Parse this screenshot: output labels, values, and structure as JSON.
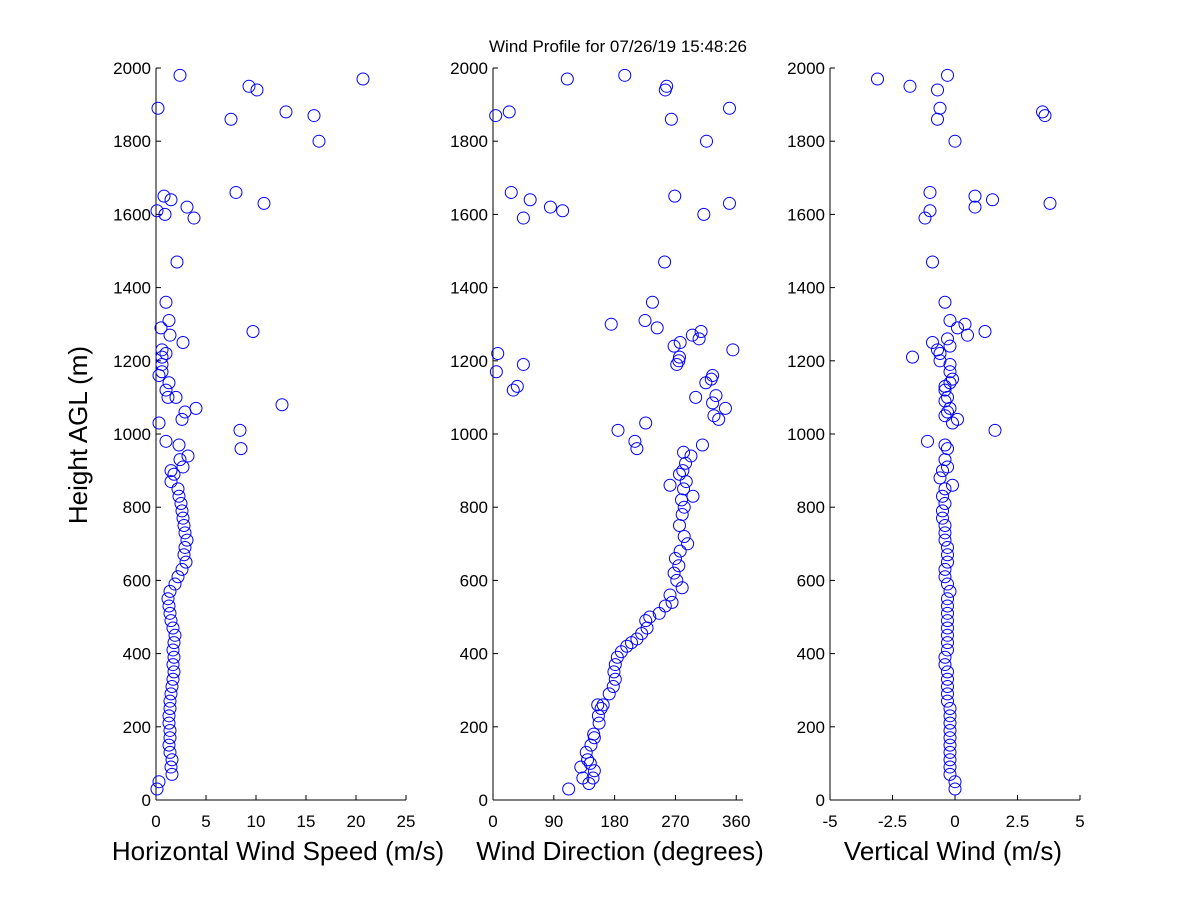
{
  "figure": {
    "title": "Wind Profile for  07/26/19 15:48:26",
    "ylabel": "Height AGL (m)"
  },
  "colors": {
    "marker": "#0000ff",
    "axes": "#000000",
    "background": "#ffffff"
  },
  "chart_data": [
    {
      "type": "scatter",
      "xlabel": "Horizontal Wind Speed (m/s)",
      "ylabel": "Height AGL (m)",
      "xlim": [
        0,
        25
      ],
      "ylim": [
        0,
        2000
      ],
      "xticks": [
        0,
        5,
        10,
        15,
        20,
        25
      ],
      "xtick_labels": [
        "0",
        "5",
        "10",
        "15",
        "20",
        "25"
      ],
      "yticks": [
        0,
        200,
        400,
        600,
        800,
        1000,
        1200,
        1400,
        1600,
        1800,
        2000
      ],
      "ytick_labels": [
        "0",
        "200",
        "400",
        "600",
        "800",
        "1000",
        "1200",
        "1400",
        "1600",
        "1800",
        "2000"
      ],
      "marker": "circle",
      "grid": false,
      "points": [
        [
          0.1,
          30
        ],
        [
          0.3,
          50
        ],
        [
          1.6,
          70
        ],
        [
          1.5,
          90
        ],
        [
          1.6,
          110
        ],
        [
          1.4,
          130
        ],
        [
          1.3,
          150
        ],
        [
          1.4,
          170
        ],
        [
          1.4,
          190
        ],
        [
          1.3,
          210
        ],
        [
          1.3,
          230
        ],
        [
          1.4,
          250
        ],
        [
          1.4,
          270
        ],
        [
          1.5,
          290
        ],
        [
          1.6,
          310
        ],
        [
          1.7,
          330
        ],
        [
          1.8,
          350
        ],
        [
          1.7,
          370
        ],
        [
          1.8,
          390
        ],
        [
          1.7,
          410
        ],
        [
          1.8,
          430
        ],
        [
          1.9,
          450
        ],
        [
          1.7,
          470
        ],
        [
          1.5,
          490
        ],
        [
          1.4,
          510
        ],
        [
          1.3,
          530
        ],
        [
          1.2,
          550
        ],
        [
          1.4,
          570
        ],
        [
          1.9,
          590
        ],
        [
          2.2,
          610
        ],
        [
          2.6,
          630
        ],
        [
          3.0,
          650
        ],
        [
          2.8,
          670
        ],
        [
          2.9,
          690
        ],
        [
          3.1,
          710
        ],
        [
          2.9,
          730
        ],
        [
          2.8,
          750
        ],
        [
          2.7,
          770
        ],
        [
          2.6,
          790
        ],
        [
          2.5,
          810
        ],
        [
          2.3,
          830
        ],
        [
          2.2,
          850
        ],
        [
          1.5,
          870
        ],
        [
          1.8,
          890
        ],
        [
          1.5,
          900
        ],
        [
          2.7,
          910
        ],
        [
          2.4,
          930
        ],
        [
          3.2,
          940
        ],
        [
          2.3,
          970
        ],
        [
          1.0,
          980
        ],
        [
          8.5,
          960
        ],
        [
          8.4,
          1010
        ],
        [
          0.3,
          1030
        ],
        [
          2.6,
          1040
        ],
        [
          2.9,
          1060
        ],
        [
          4.0,
          1070
        ],
        [
          12.6,
          1080
        ],
        [
          2.0,
          1100
        ],
        [
          1.0,
          1120
        ],
        [
          1.3,
          1140
        ],
        [
          0.3,
          1160
        ],
        [
          0.6,
          1170
        ],
        [
          0.6,
          1190
        ],
        [
          0.6,
          1210
        ],
        [
          1.0,
          1220
        ],
        [
          0.6,
          1230
        ],
        [
          2.7,
          1250
        ],
        [
          1.4,
          1270
        ],
        [
          9.7,
          1280
        ],
        [
          0.5,
          1290
        ],
        [
          1.3,
          1310
        ],
        [
          1.0,
          1360
        ],
        [
          2.1,
          1470
        ],
        [
          3.8,
          1590
        ],
        [
          0.1,
          1610
        ],
        [
          3.1,
          1620
        ],
        [
          1.5,
          1640
        ],
        [
          0.8,
          1650
        ],
        [
          8.0,
          1660
        ],
        [
          10.8,
          1630
        ],
        [
          16.3,
          1800
        ],
        [
          7.5,
          1860
        ],
        [
          15.8,
          1870
        ],
        [
          13.0,
          1880
        ],
        [
          0.2,
          1890
        ],
        [
          10.1,
          1940
        ],
        [
          9.3,
          1950
        ],
        [
          20.7,
          1970
        ],
        [
          2.4,
          1980
        ],
        [
          0.9,
          1600
        ],
        [
          1.2,
          1100
        ]
      ]
    },
    {
      "type": "scatter",
      "xlabel": "Wind Direction (degrees)",
      "xlim": [
        0,
        370
      ],
      "ylim": [
        0,
        2000
      ],
      "xticks": [
        0,
        90,
        180,
        270,
        360
      ],
      "xtick_labels": [
        "0",
        "90",
        "180",
        "270",
        "360"
      ],
      "yticks": [
        0,
        200,
        400,
        600,
        800,
        1000,
        1200,
        1400,
        1600,
        1800,
        2000
      ],
      "ytick_labels": [
        "0",
        "200",
        "400",
        "600",
        "800",
        "1000",
        "1200",
        "1400",
        "1600",
        "1800",
        "2000"
      ],
      "marker": "circle",
      "grid": false,
      "points": [
        [
          112,
          30
        ],
        [
          142,
          45
        ],
        [
          148,
          60
        ],
        [
          133,
          60
        ],
        [
          150,
          80
        ],
        [
          130,
          90
        ],
        [
          144,
          100
        ],
        [
          140,
          110
        ],
        [
          138,
          130
        ],
        [
          145,
          150
        ],
        [
          150,
          170
        ],
        [
          149,
          180
        ],
        [
          157,
          210
        ],
        [
          156,
          230
        ],
        [
          160,
          250
        ],
        [
          155,
          260
        ],
        [
          163,
          260
        ],
        [
          172,
          290
        ],
        [
          178,
          310
        ],
        [
          181,
          330
        ],
        [
          179,
          350
        ],
        [
          181,
          370
        ],
        [
          184,
          390
        ],
        [
          190,
          405
        ],
        [
          198,
          420
        ],
        [
          205,
          430
        ],
        [
          213,
          440
        ],
        [
          220,
          455
        ],
        [
          228,
          470
        ],
        [
          226,
          490
        ],
        [
          232,
          500
        ],
        [
          246,
          510
        ],
        [
          255,
          530
        ],
        [
          265,
          540
        ],
        [
          262,
          560
        ],
        [
          280,
          580
        ],
        [
          272,
          600
        ],
        [
          268,
          620
        ],
        [
          275,
          640
        ],
        [
          270,
          660
        ],
        [
          277,
          680
        ],
        [
          288,
          700
        ],
        [
          283,
          720
        ],
        [
          276,
          750
        ],
        [
          280,
          780
        ],
        [
          283,
          800
        ],
        [
          279,
          820
        ],
        [
          296,
          830
        ],
        [
          282,
          850
        ],
        [
          286,
          870
        ],
        [
          262,
          860
        ],
        [
          276,
          890
        ],
        [
          281,
          900
        ],
        [
          285,
          920
        ],
        [
          293,
          940
        ],
        [
          282,
          950
        ],
        [
          310,
          970
        ],
        [
          210,
          980
        ],
        [
          213,
          960
        ],
        [
          185,
          1010
        ],
        [
          226,
          1030
        ],
        [
          334,
          1040
        ],
        [
          327,
          1050
        ],
        [
          344,
          1070
        ],
        [
          325,
          1085
        ],
        [
          330,
          1105
        ],
        [
          300,
          1100
        ],
        [
          315,
          1140
        ],
        [
          323,
          1150
        ],
        [
          325,
          1160
        ],
        [
          272,
          1190
        ],
        [
          275,
          1200
        ],
        [
          276,
          1210
        ],
        [
          45,
          1190
        ],
        [
          30,
          1120
        ],
        [
          36,
          1130
        ],
        [
          5,
          1170
        ],
        [
          7,
          1220
        ],
        [
          355,
          1230
        ],
        [
          305,
          1260
        ],
        [
          277,
          1250
        ],
        [
          268,
          1240
        ],
        [
          308,
          1280
        ],
        [
          295,
          1270
        ],
        [
          243,
          1290
        ],
        [
          225,
          1310
        ],
        [
          175,
          1300
        ],
        [
          236,
          1360
        ],
        [
          254,
          1470
        ],
        [
          312,
          1600
        ],
        [
          103,
          1610
        ],
        [
          45,
          1590
        ],
        [
          55,
          1640
        ],
        [
          85,
          1620
        ],
        [
          27,
          1660
        ],
        [
          269,
          1650
        ],
        [
          350,
          1630
        ],
        [
          316,
          1800
        ],
        [
          264,
          1860
        ],
        [
          4,
          1870
        ],
        [
          24,
          1880
        ],
        [
          350,
          1890
        ],
        [
          255,
          1940
        ],
        [
          257,
          1950
        ],
        [
          110,
          1970
        ],
        [
          195,
          1980
        ]
      ]
    },
    {
      "type": "scatter",
      "xlabel": "Vertical Wind (m/s)",
      "xlim": [
        -5,
        5
      ],
      "ylim": [
        0,
        2000
      ],
      "xticks": [
        -5,
        -2.5,
        0,
        2.5,
        5
      ],
      "xtick_labels": [
        "-5",
        "-2.5",
        "0",
        "2.5",
        "5"
      ],
      "yticks": [
        0,
        200,
        400,
        600,
        800,
        1000,
        1200,
        1400,
        1600,
        1800,
        2000
      ],
      "ytick_labels": [
        "0",
        "200",
        "400",
        "600",
        "800",
        "1000",
        "1200",
        "1400",
        "1600",
        "1800",
        "2000"
      ],
      "marker": "circle",
      "grid": false,
      "points": [
        [
          0.0,
          30
        ],
        [
          0.0,
          50
        ],
        [
          -0.2,
          70
        ],
        [
          -0.2,
          90
        ],
        [
          -0.2,
          110
        ],
        [
          -0.2,
          130
        ],
        [
          -0.2,
          150
        ],
        [
          -0.2,
          170
        ],
        [
          -0.2,
          190
        ],
        [
          -0.2,
          210
        ],
        [
          -0.2,
          230
        ],
        [
          -0.2,
          250
        ],
        [
          -0.3,
          270
        ],
        [
          -0.3,
          290
        ],
        [
          -0.3,
          310
        ],
        [
          -0.3,
          330
        ],
        [
          -0.3,
          350
        ],
        [
          -0.4,
          370
        ],
        [
          -0.4,
          390
        ],
        [
          -0.3,
          410
        ],
        [
          -0.3,
          430
        ],
        [
          -0.3,
          450
        ],
        [
          -0.3,
          470
        ],
        [
          -0.3,
          490
        ],
        [
          -0.3,
          510
        ],
        [
          -0.3,
          530
        ],
        [
          -0.3,
          550
        ],
        [
          -0.2,
          570
        ],
        [
          -0.3,
          590
        ],
        [
          -0.4,
          610
        ],
        [
          -0.4,
          630
        ],
        [
          -0.3,
          650
        ],
        [
          -0.3,
          670
        ],
        [
          -0.3,
          690
        ],
        [
          -0.4,
          710
        ],
        [
          -0.4,
          730
        ],
        [
          -0.4,
          750
        ],
        [
          -0.5,
          770
        ],
        [
          -0.5,
          790
        ],
        [
          -0.4,
          810
        ],
        [
          -0.5,
          830
        ],
        [
          -0.4,
          850
        ],
        [
          -0.1,
          860
        ],
        [
          -0.6,
          880
        ],
        [
          -0.5,
          900
        ],
        [
          -0.3,
          910
        ],
        [
          -0.4,
          930
        ],
        [
          -0.3,
          960
        ],
        [
          -0.4,
          970
        ],
        [
          -1.1,
          980
        ],
        [
          1.6,
          1010
        ],
        [
          -0.1,
          1030
        ],
        [
          0.1,
          1040
        ],
        [
          -0.4,
          1050
        ],
        [
          -0.3,
          1060
        ],
        [
          -0.2,
          1070
        ],
        [
          -0.4,
          1090
        ],
        [
          -0.3,
          1100
        ],
        [
          -0.4,
          1120
        ],
        [
          -0.4,
          1130
        ],
        [
          -0.2,
          1140
        ],
        [
          -0.1,
          1150
        ],
        [
          -0.2,
          1170
        ],
        [
          -0.2,
          1190
        ],
        [
          -0.6,
          1200
        ],
        [
          -1.7,
          1210
        ],
        [
          -0.6,
          1220
        ],
        [
          -0.7,
          1230
        ],
        [
          -0.2,
          1240
        ],
        [
          -0.9,
          1250
        ],
        [
          -0.3,
          1260
        ],
        [
          0.5,
          1270
        ],
        [
          1.2,
          1280
        ],
        [
          0.1,
          1290
        ],
        [
          0.4,
          1300
        ],
        [
          -0.2,
          1310
        ],
        [
          -0.4,
          1360
        ],
        [
          -0.9,
          1470
        ],
        [
          -1.2,
          1590
        ],
        [
          -1.0,
          1610
        ],
        [
          0.8,
          1620
        ],
        [
          1.5,
          1640
        ],
        [
          0.8,
          1650
        ],
        [
          -1.0,
          1660
        ],
        [
          3.8,
          1630
        ],
        [
          0.0,
          1800
        ],
        [
          -0.7,
          1860
        ],
        [
          3.6,
          1870
        ],
        [
          3.5,
          1880
        ],
        [
          -0.6,
          1890
        ],
        [
          -0.7,
          1940
        ],
        [
          -1.8,
          1950
        ],
        [
          -3.1,
          1970
        ],
        [
          -0.3,
          1980
        ]
      ]
    }
  ]
}
